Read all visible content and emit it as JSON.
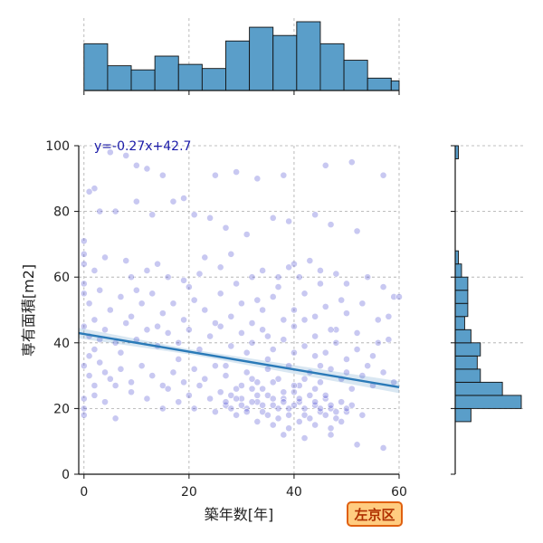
{
  "chart_data": {
    "type": "scatter",
    "title": "",
    "xlabel": "築年数[年]",
    "ylabel": "専有面積[m2]",
    "xlim": [
      -1,
      60
    ],
    "ylim": [
      0,
      100
    ],
    "xticks": [
      0,
      20,
      40,
      60
    ],
    "yticks": [
      0,
      20,
      40,
      60,
      80,
      100
    ],
    "grid": true,
    "point_color": "#3a3acc",
    "hist_color": "#5a9ec9",
    "line_color": "#2a7ab8",
    "regression": {
      "label": "y=-0.27x+42.7",
      "slope": -0.27,
      "intercept": 42.7
    },
    "points": [
      [
        2,
        87
      ],
      [
        1,
        86
      ],
      [
        5,
        98
      ],
      [
        8,
        97
      ],
      [
        10,
        94
      ],
      [
        12,
        93
      ],
      [
        15,
        91
      ],
      [
        25,
        91
      ],
      [
        29,
        92
      ],
      [
        33,
        90
      ],
      [
        38,
        91
      ],
      [
        46,
        94
      ],
      [
        51,
        95
      ],
      [
        57,
        91
      ],
      [
        3,
        80
      ],
      [
        6,
        80
      ],
      [
        10,
        83
      ],
      [
        13,
        79
      ],
      [
        17,
        83
      ],
      [
        19,
        84
      ],
      [
        21,
        79
      ],
      [
        24,
        78
      ],
      [
        27,
        75
      ],
      [
        31,
        73
      ],
      [
        36,
        78
      ],
      [
        39,
        77
      ],
      [
        44,
        79
      ],
      [
        47,
        76
      ],
      [
        52,
        74
      ],
      [
        0,
        71
      ],
      [
        0,
        67
      ],
      [
        0,
        64
      ],
      [
        2,
        62
      ],
      [
        4,
        66
      ],
      [
        8,
        65
      ],
      [
        9,
        60
      ],
      [
        12,
        62
      ],
      [
        14,
        64
      ],
      [
        16,
        60
      ],
      [
        19,
        59
      ],
      [
        22,
        61
      ],
      [
        26,
        63
      ],
      [
        29,
        58
      ],
      [
        32,
        60
      ],
      [
        34,
        62
      ],
      [
        37,
        60
      ],
      [
        39,
        63
      ],
      [
        41,
        60
      ],
      [
        43,
        65
      ],
      [
        45,
        62
      ],
      [
        48,
        61
      ],
      [
        50,
        58
      ],
      [
        54,
        60
      ],
      [
        57,
        57
      ],
      [
        0,
        55
      ],
      [
        1,
        52
      ],
      [
        3,
        56
      ],
      [
        5,
        50
      ],
      [
        7,
        54
      ],
      [
        9,
        48
      ],
      [
        11,
        52
      ],
      [
        13,
        55
      ],
      [
        15,
        49
      ],
      [
        17,
        52
      ],
      [
        19,
        47
      ],
      [
        21,
        53
      ],
      [
        23,
        50
      ],
      [
        26,
        55
      ],
      [
        28,
        48
      ],
      [
        30,
        52
      ],
      [
        32,
        46
      ],
      [
        34,
        50
      ],
      [
        36,
        54
      ],
      [
        38,
        47
      ],
      [
        40,
        50
      ],
      [
        42,
        55
      ],
      [
        44,
        48
      ],
      [
        46,
        51
      ],
      [
        48,
        44
      ],
      [
        50,
        49
      ],
      [
        53,
        52
      ],
      [
        56,
        47
      ],
      [
        59,
        54
      ],
      [
        0,
        45
      ],
      [
        1,
        42
      ],
      [
        2,
        38
      ],
      [
        4,
        44
      ],
      [
        6,
        40
      ],
      [
        8,
        46
      ],
      [
        10,
        41
      ],
      [
        12,
        44
      ],
      [
        14,
        39
      ],
      [
        16,
        43
      ],
      [
        18,
        40
      ],
      [
        20,
        44
      ],
      [
        22,
        38
      ],
      [
        24,
        42
      ],
      [
        26,
        45
      ],
      [
        28,
        39
      ],
      [
        30,
        43
      ],
      [
        32,
        40
      ],
      [
        34,
        44
      ],
      [
        36,
        38
      ],
      [
        38,
        41
      ],
      [
        40,
        45
      ],
      [
        42,
        39
      ],
      [
        44,
        42
      ],
      [
        46,
        37
      ],
      [
        48,
        40
      ],
      [
        50,
        35
      ],
      [
        52,
        38
      ],
      [
        55,
        36
      ],
      [
        58,
        41
      ],
      [
        0,
        33
      ],
      [
        1,
        30
      ],
      [
        2,
        27
      ],
      [
        3,
        34
      ],
      [
        5,
        29
      ],
      [
        7,
        32
      ],
      [
        9,
        28
      ],
      [
        11,
        33
      ],
      [
        13,
        30
      ],
      [
        15,
        27
      ],
      [
        17,
        31
      ],
      [
        19,
        28
      ],
      [
        21,
        32
      ],
      [
        23,
        29
      ],
      [
        25,
        33
      ],
      [
        27,
        30
      ],
      [
        29,
        26
      ],
      [
        31,
        31
      ],
      [
        33,
        28
      ],
      [
        35,
        32
      ],
      [
        37,
        29
      ],
      [
        39,
        33
      ],
      [
        41,
        27
      ],
      [
        43,
        31
      ],
      [
        45,
        28
      ],
      [
        47,
        32
      ],
      [
        49,
        29
      ],
      [
        51,
        26
      ],
      [
        53,
        30
      ],
      [
        55,
        27
      ],
      [
        57,
        31
      ],
      [
        59,
        28
      ],
      [
        0,
        23
      ],
      [
        0,
        20
      ],
      [
        0,
        18
      ],
      [
        2,
        24
      ],
      [
        4,
        22
      ],
      [
        6,
        17
      ],
      [
        9,
        25
      ],
      [
        12,
        23
      ],
      [
        15,
        20
      ],
      [
        16,
        26
      ],
      [
        18,
        22
      ],
      [
        20,
        24
      ],
      [
        21,
        20
      ],
      [
        22,
        27
      ],
      [
        24,
        23
      ],
      [
        25,
        19
      ],
      [
        26,
        25
      ],
      [
        27,
        21
      ],
      [
        28,
        24
      ],
      [
        29,
        18
      ],
      [
        30,
        23
      ],
      [
        31,
        20
      ],
      [
        32,
        26
      ],
      [
        33,
        22
      ],
      [
        34,
        19
      ],
      [
        35,
        24
      ],
      [
        36,
        21
      ],
      [
        37,
        17
      ],
      [
        38,
        23
      ],
      [
        39,
        20
      ],
      [
        40,
        25
      ],
      [
        41,
        22
      ],
      [
        42,
        18
      ],
      [
        43,
        24
      ],
      [
        44,
        21
      ],
      [
        45,
        19
      ],
      [
        46,
        23
      ],
      [
        47,
        20
      ],
      [
        48,
        17
      ],
      [
        49,
        22
      ],
      [
        50,
        19
      ],
      [
        51,
        21
      ],
      [
        53,
        18
      ],
      [
        27,
        22
      ],
      [
        28,
        20
      ],
      [
        29,
        23
      ],
      [
        30,
        21
      ],
      [
        31,
        19
      ],
      [
        32,
        22
      ],
      [
        33,
        24
      ],
      [
        34,
        21
      ],
      [
        35,
        18
      ],
      [
        36,
        23
      ],
      [
        37,
        20
      ],
      [
        38,
        22
      ],
      [
        39,
        18
      ],
      [
        40,
        21
      ],
      [
        41,
        23
      ],
      [
        42,
        20
      ],
      [
        43,
        17
      ],
      [
        44,
        22
      ],
      [
        45,
        20
      ],
      [
        46,
        18
      ],
      [
        47,
        21
      ],
      [
        48,
        19
      ],
      [
        49,
        16
      ],
      [
        50,
        20
      ],
      [
        33,
        16
      ],
      [
        36,
        15
      ],
      [
        39,
        14
      ],
      [
        41,
        16
      ],
      [
        44,
        15
      ],
      [
        47,
        14
      ],
      [
        30,
        27
      ],
      [
        32,
        29
      ],
      [
        34,
        26
      ],
      [
        36,
        28
      ],
      [
        38,
        25
      ],
      [
        40,
        27
      ],
      [
        42,
        29
      ],
      [
        44,
        26
      ],
      [
        46,
        24
      ],
      [
        35,
        35
      ],
      [
        40,
        37
      ],
      [
        45,
        33
      ],
      [
        50,
        31
      ],
      [
        38,
        12
      ],
      [
        42,
        11
      ],
      [
        47,
        12
      ],
      [
        52,
        9
      ],
      [
        57,
        8
      ],
      [
        0,
        58
      ],
      [
        2,
        47
      ],
      [
        3,
        41
      ],
      [
        1,
        36
      ],
      [
        4,
        31
      ],
      [
        6,
        27
      ],
      [
        7,
        37
      ],
      [
        10,
        56
      ],
      [
        14,
        45
      ],
      [
        18,
        35
      ],
      [
        20,
        57
      ],
      [
        23,
        66
      ],
      [
        25,
        46
      ],
      [
        27,
        33
      ],
      [
        28,
        67
      ],
      [
        31,
        37
      ],
      [
        33,
        53
      ],
      [
        35,
        42
      ],
      [
        37,
        57
      ],
      [
        40,
        64
      ],
      [
        42,
        47
      ],
      [
        44,
        36
      ],
      [
        45,
        58
      ],
      [
        47,
        44
      ],
      [
        49,
        53
      ],
      [
        52,
        43
      ],
      [
        54,
        33
      ],
      [
        56,
        40
      ],
      [
        58,
        48
      ],
      [
        60,
        54
      ]
    ],
    "x_hist": {
      "edges": [
        0,
        4.5,
        9,
        13.5,
        18,
        22.5,
        27,
        31.5,
        36,
        40.5,
        45,
        49.5,
        54,
        58.5,
        60
      ],
      "counts": [
        34,
        18,
        15,
        25,
        19,
        16,
        36,
        46,
        40,
        50,
        34,
        22,
        9,
        7
      ]
    },
    "y_hist": {
      "edges": [
        0,
        4,
        8,
        12,
        16,
        20,
        24,
        28,
        32,
        36,
        40,
        44,
        48,
        52,
        56,
        60,
        64,
        68,
        72,
        76,
        80,
        84,
        88,
        92,
        96,
        100
      ],
      "counts": [
        0,
        0,
        0,
        0,
        5,
        21,
        15,
        8,
        7,
        8,
        5,
        3,
        4,
        4,
        4,
        2,
        1,
        0,
        0,
        0,
        0,
        0,
        0,
        0,
        1
      ]
    }
  },
  "badge": {
    "label": "左京区",
    "fill": "#ffcc80",
    "border": "#e06010"
  }
}
